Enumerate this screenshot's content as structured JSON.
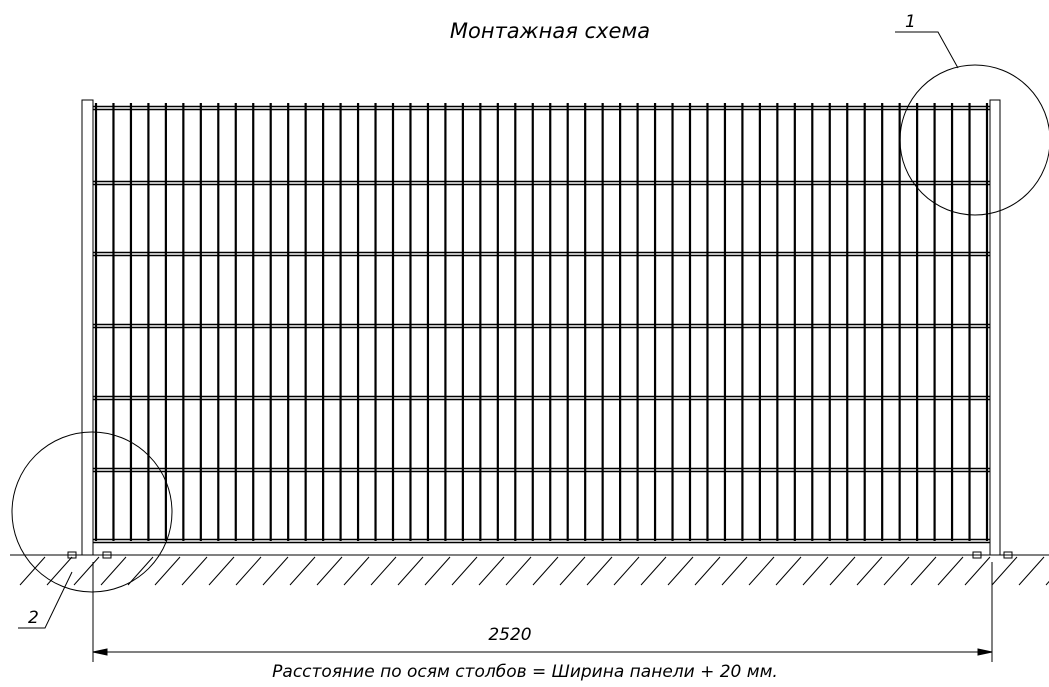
{
  "title": "Монтажная схема",
  "callouts": [
    "1",
    "2"
  ],
  "dimension": 2520,
  "caption": "Расстояние по осям столбов = Ширина панели + 20 мм."
}
